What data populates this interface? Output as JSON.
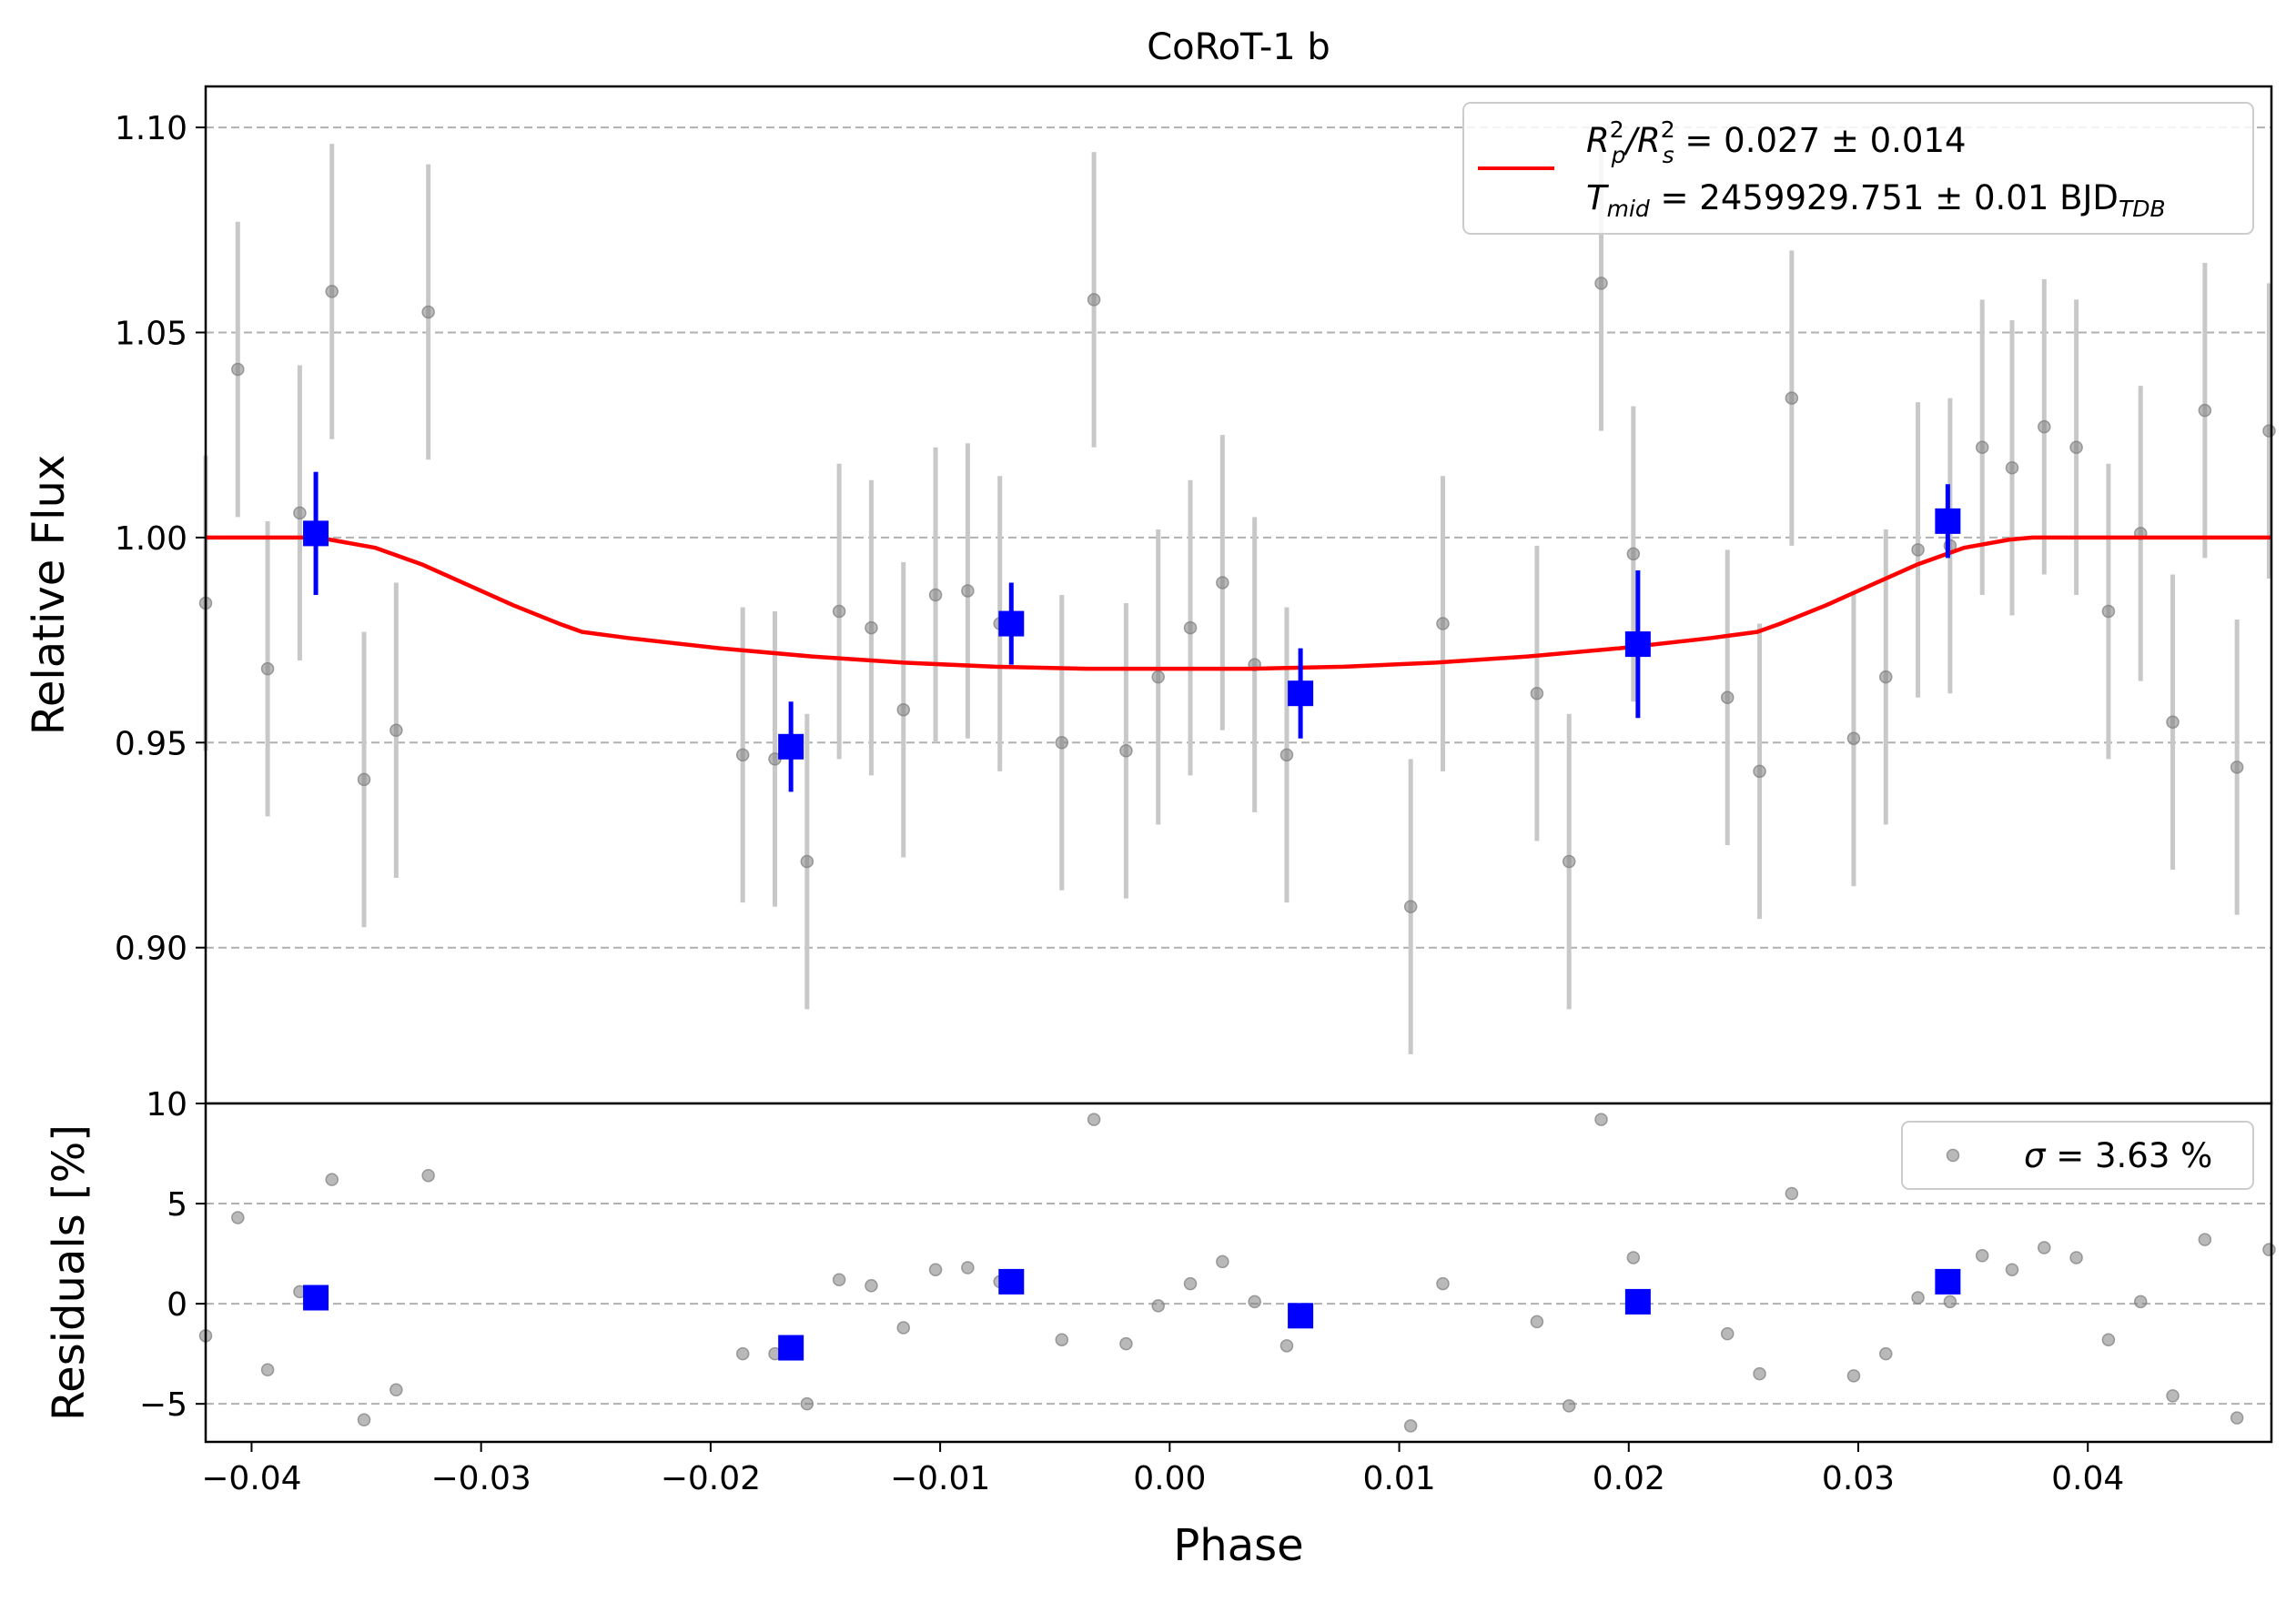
{
  "chart_data": {
    "type": "scatter",
    "title": "CoRoT-1 b",
    "xlabel": "Phase",
    "xlim": [
      -0.042,
      0.048
    ],
    "x_ticks": [
      -0.04,
      -0.03,
      -0.02,
      -0.01,
      0.0,
      0.01,
      0.02,
      0.03,
      0.04
    ],
    "x_tick_labels": [
      "−0.04",
      "−0.03",
      "−0.02",
      "−0.01",
      "0.00",
      "0.01",
      "0.02",
      "0.03",
      "0.04"
    ],
    "grid": "horizontal dashed",
    "top_panel": {
      "ylabel": "Relative Flux",
      "ylim": [
        0.862,
        1.11
      ],
      "y_ticks": [
        0.9,
        0.95,
        1.0,
        1.05,
        1.1
      ],
      "y_tick_labels": [
        "0.90",
        "0.95",
        "1.00",
        "1.05",
        "1.10"
      ],
      "legend": {
        "placement": "upper right",
        "line1_prefix": "R",
        "line1_sup1": "2",
        "line1_sub1": "p",
        "line1_slash": "/R",
        "line1_sup2": "2",
        "line1_sub2": "s",
        "line1_value": " = 0.027 ± 0.014",
        "line2_prefix": "T",
        "line2_sub": "mid",
        "line2_value": " = 2459929.751 ± 0.01 BJD",
        "line2_unit_sub": "TDB"
      },
      "raw_points": [
        {
          "x": -0.042,
          "y": 0.984,
          "err": 0.036
        },
        {
          "x": -0.0406,
          "y": 1.041,
          "err": 0.036
        },
        {
          "x": -0.0393,
          "y": 0.968,
          "err": 0.036
        },
        {
          "x": -0.0379,
          "y": 1.006,
          "err": 0.036
        },
        {
          "x": -0.0365,
          "y": 1.06,
          "err": 0.036
        },
        {
          "x": -0.0351,
          "y": 0.941,
          "err": 0.036
        },
        {
          "x": -0.0337,
          "y": 0.953,
          "err": 0.036
        },
        {
          "x": -0.0323,
          "y": 1.055,
          "err": 0.036
        },
        {
          "x": -0.0186,
          "y": 0.947,
          "err": 0.036
        },
        {
          "x": -0.0172,
          "y": 0.946,
          "err": 0.036
        },
        {
          "x": -0.0158,
          "y": 0.921,
          "err": 0.036
        },
        {
          "x": -0.0144,
          "y": 0.982,
          "err": 0.036
        },
        {
          "x": -0.013,
          "y": 0.978,
          "err": 0.036
        },
        {
          "x": -0.0116,
          "y": 0.958,
          "err": 0.036
        },
        {
          "x": -0.0102,
          "y": 0.986,
          "err": 0.036
        },
        {
          "x": -0.0088,
          "y": 0.987,
          "err": 0.036
        },
        {
          "x": -0.0074,
          "y": 0.979,
          "err": 0.036
        },
        {
          "x": -0.0047,
          "y": 0.95,
          "err": 0.036
        },
        {
          "x": -0.0033,
          "y": 1.058,
          "err": 0.036
        },
        {
          "x": -0.0019,
          "y": 0.948,
          "err": 0.036
        },
        {
          "x": -0.0005,
          "y": 0.966,
          "err": 0.036
        },
        {
          "x": 0.0009,
          "y": 0.978,
          "err": 0.036
        },
        {
          "x": 0.0023,
          "y": 0.989,
          "err": 0.036
        },
        {
          "x": 0.0037,
          "y": 0.969,
          "err": 0.036
        },
        {
          "x": 0.0051,
          "y": 0.947,
          "err": 0.036
        },
        {
          "x": 0.0105,
          "y": 0.91,
          "err": 0.036
        },
        {
          "x": 0.0119,
          "y": 0.979,
          "err": 0.036
        },
        {
          "x": 0.016,
          "y": 0.962,
          "err": 0.036
        },
        {
          "x": 0.0174,
          "y": 0.921,
          "err": 0.036
        },
        {
          "x": 0.0188,
          "y": 1.062,
          "err": 0.036
        },
        {
          "x": 0.0202,
          "y": 0.996,
          "err": 0.036
        },
        {
          "x": 0.0243,
          "y": 0.961,
          "err": 0.036
        },
        {
          "x": 0.0257,
          "y": 0.943,
          "err": 0.036
        },
        {
          "x": 0.0271,
          "y": 1.034,
          "err": 0.036
        },
        {
          "x": 0.0298,
          "y": 0.951,
          "err": 0.036
        },
        {
          "x": 0.0312,
          "y": 0.966,
          "err": 0.036
        },
        {
          "x": 0.0326,
          "y": 0.997,
          "err": 0.036
        },
        {
          "x": 0.034,
          "y": 0.998,
          "err": 0.036
        },
        {
          "x": 0.0354,
          "y": 1.022,
          "err": 0.036
        },
        {
          "x": 0.0367,
          "y": 1.017,
          "err": 0.036
        },
        {
          "x": 0.0381,
          "y": 1.027,
          "err": 0.036
        },
        {
          "x": 0.0395,
          "y": 1.022,
          "err": 0.036
        },
        {
          "x": 0.0409,
          "y": 0.982,
          "err": 0.036
        },
        {
          "x": 0.0423,
          "y": 1.001,
          "err": 0.036
        },
        {
          "x": 0.0437,
          "y": 0.955,
          "err": 0.036
        },
        {
          "x": 0.0451,
          "y": 1.031,
          "err": 0.036
        },
        {
          "x": 0.0465,
          "y": 0.944,
          "err": 0.036
        },
        {
          "x": 0.0479,
          "y": 1.026,
          "err": 0.036
        }
      ],
      "binned_points": [
        {
          "x": -0.0372,
          "y": 1.001,
          "err": 0.015
        },
        {
          "x": -0.0165,
          "y": 0.949,
          "err": 0.011
        },
        {
          "x": -0.0069,
          "y": 0.979,
          "err": 0.01
        },
        {
          "x": 0.0057,
          "y": 0.962,
          "err": 0.011
        },
        {
          "x": 0.0204,
          "y": 0.974,
          "err": 0.018
        },
        {
          "x": 0.0339,
          "y": 1.004,
          "err": 0.009
        }
      ],
      "model": {
        "x": [
          -0.042,
          -0.0376,
          -0.0366,
          -0.0346,
          -0.0326,
          -0.0306,
          -0.0286,
          -0.0266,
          -0.0256,
          -0.0236,
          -0.0196,
          -0.0156,
          -0.0116,
          -0.0076,
          -0.0036,
          0.0,
          0.0036,
          0.0076,
          0.0116,
          0.0156,
          0.0196,
          0.0236,
          0.0256,
          0.0266,
          0.0286,
          0.0306,
          0.0326,
          0.0346,
          0.0366,
          0.0376,
          0.048
        ],
        "y": [
          1.0,
          1.0,
          0.9995,
          0.9975,
          0.9935,
          0.9885,
          0.9835,
          0.979,
          0.977,
          0.9755,
          0.973,
          0.971,
          0.9695,
          0.9685,
          0.968,
          0.968,
          0.968,
          0.9685,
          0.9695,
          0.971,
          0.973,
          0.9755,
          0.977,
          0.979,
          0.9835,
          0.9885,
          0.9935,
          0.9975,
          0.9995,
          1.0,
          1.0
        ]
      }
    },
    "bottom_panel": {
      "ylabel": "Residuals [%]",
      "ylim": [
        -6.9,
        10
      ],
      "y_ticks": [
        -5,
        0,
        5,
        10
      ],
      "y_tick_labels": [
        "−5",
        "0",
        "5",
        "10"
      ],
      "legend": {
        "placement": "upper right",
        "label_sigma": "σ",
        "label_rest": " = 3.63 %"
      },
      "raw_points": [
        {
          "x": -0.042,
          "y": -1.6
        },
        {
          "x": -0.0406,
          "y": 4.3
        },
        {
          "x": -0.0393,
          "y": -3.3
        },
        {
          "x": -0.0379,
          "y": 0.6
        },
        {
          "x": -0.0365,
          "y": 6.2
        },
        {
          "x": -0.0351,
          "y": -5.8
        },
        {
          "x": -0.0337,
          "y": -4.3
        },
        {
          "x": -0.0323,
          "y": 6.4
        },
        {
          "x": -0.0186,
          "y": -2.5
        },
        {
          "x": -0.0172,
          "y": -2.5
        },
        {
          "x": -0.0158,
          "y": -5.0
        },
        {
          "x": -0.0144,
          "y": 1.2
        },
        {
          "x": -0.013,
          "y": 0.9
        },
        {
          "x": -0.0116,
          "y": -1.2
        },
        {
          "x": -0.0102,
          "y": 1.7
        },
        {
          "x": -0.0088,
          "y": 1.8
        },
        {
          "x": -0.0074,
          "y": 1.1
        },
        {
          "x": -0.0047,
          "y": -1.8
        },
        {
          "x": -0.0033,
          "y": 9.2
        },
        {
          "x": -0.0019,
          "y": -2.0
        },
        {
          "x": -0.0005,
          "y": -0.1
        },
        {
          "x": 0.0009,
          "y": 1.0
        },
        {
          "x": 0.0023,
          "y": 2.1
        },
        {
          "x": 0.0037,
          "y": 0.1
        },
        {
          "x": 0.0051,
          "y": -2.1
        },
        {
          "x": 0.0105,
          "y": -6.1
        },
        {
          "x": 0.0119,
          "y": 1.0
        },
        {
          "x": 0.016,
          "y": -0.9
        },
        {
          "x": 0.0174,
          "y": -5.1
        },
        {
          "x": 0.0188,
          "y": 9.2
        },
        {
          "x": 0.0202,
          "y": 2.3
        },
        {
          "x": 0.0243,
          "y": -1.5
        },
        {
          "x": 0.0257,
          "y": -3.5
        },
        {
          "x": 0.0271,
          "y": 5.5
        },
        {
          "x": 0.0298,
          "y": -3.6
        },
        {
          "x": 0.0312,
          "y": -2.5
        },
        {
          "x": 0.0326,
          "y": 0.3
        },
        {
          "x": 0.034,
          "y": 0.1
        },
        {
          "x": 0.0354,
          "y": 2.4
        },
        {
          "x": 0.0367,
          "y": 1.7
        },
        {
          "x": 0.0381,
          "y": 2.8
        },
        {
          "x": 0.0395,
          "y": 2.3
        },
        {
          "x": 0.0409,
          "y": -1.8
        },
        {
          "x": 0.0423,
          "y": 0.1
        },
        {
          "x": 0.0437,
          "y": -4.6
        },
        {
          "x": 0.0451,
          "y": 3.2
        },
        {
          "x": 0.0465,
          "y": -5.7
        },
        {
          "x": 0.0479,
          "y": 2.7
        }
      ],
      "binned_points": [
        {
          "x": -0.0372,
          "y": 0.3
        },
        {
          "x": -0.0165,
          "y": -2.2
        },
        {
          "x": -0.0069,
          "y": 1.1
        },
        {
          "x": 0.0057,
          "y": -0.6
        },
        {
          "x": 0.0204,
          "y": 0.1
        },
        {
          "x": 0.0339,
          "y": 1.1
        }
      ]
    },
    "colors": {
      "raw_points": "#808080",
      "raw_errorbars": "#c8c8c8",
      "binned": "#0000ff",
      "model": "#ff0000",
      "grid": "#b0b0b0"
    }
  }
}
